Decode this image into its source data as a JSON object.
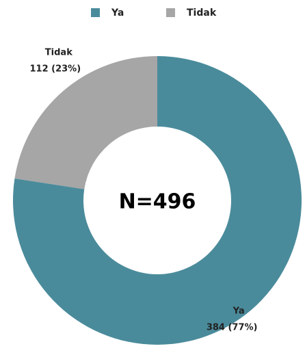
{
  "chart_data": {
    "type": "pie",
    "donut": true,
    "categories": [
      "Ya",
      "Tidak"
    ],
    "values": [
      384,
      112
    ],
    "value_labels": [
      "384 (77%)",
      "112 (23%)"
    ],
    "colors": [
      "#4a8b9b",
      "#a6a6a6"
    ],
    "legend": "top",
    "annotation": "N=496"
  }
}
